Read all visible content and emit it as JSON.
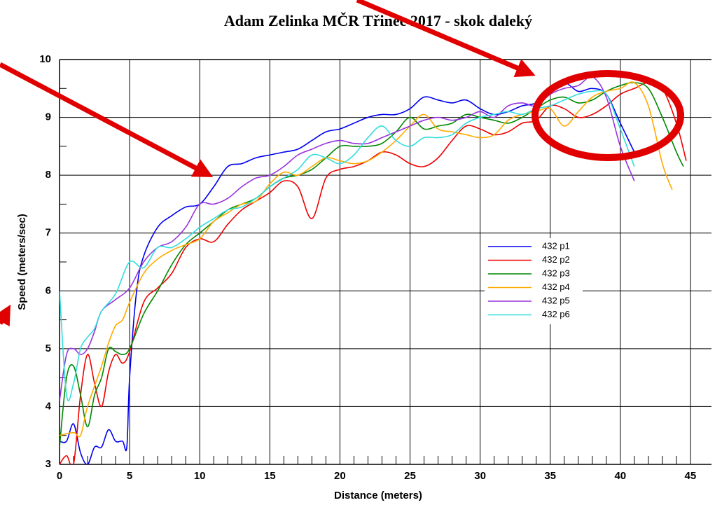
{
  "chart_data": {
    "type": "line",
    "title": "Adam Zelinka MČR Třinec 2017 - skok daleký",
    "x_label": "Distance (meters)",
    "y_label": "Speed (meters/sec)",
    "xlim": [
      0,
      46.5
    ],
    "ylim": [
      3,
      10
    ],
    "xticks": [
      0,
      5,
      10,
      15,
      20,
      25,
      30,
      35,
      40,
      45
    ],
    "yticks": [
      3,
      4,
      5,
      6,
      7,
      8,
      9,
      10
    ],
    "grid": true,
    "series": [
      {
        "name": "432 p1",
        "color": "#0000ee",
        "x": [
          0,
          0.5,
          1,
          1.5,
          2,
          2.5,
          3,
          3.5,
          4,
          4.5,
          4.8,
          5,
          5.5,
          6,
          7,
          8,
          9,
          10,
          11,
          12,
          13,
          14,
          15,
          16,
          17,
          18,
          19,
          20,
          21,
          22,
          23,
          24,
          25,
          26,
          27,
          28,
          29,
          30,
          31,
          32,
          33,
          34,
          35,
          36,
          37,
          38,
          39,
          40,
          41
        ],
        "values": [
          3.4,
          3.4,
          3.7,
          3.2,
          3.0,
          3.3,
          3.3,
          3.6,
          3.4,
          3.4,
          3.3,
          4.5,
          6.0,
          6.6,
          7.1,
          7.3,
          7.45,
          7.5,
          7.8,
          8.15,
          8.2,
          8.3,
          8.35,
          8.4,
          8.45,
          8.6,
          8.75,
          8.8,
          8.9,
          9.0,
          9.05,
          9.05,
          9.15,
          9.35,
          9.3,
          9.25,
          9.3,
          9.15,
          9.05,
          9.1,
          9.2,
          9.25,
          9.45,
          9.6,
          9.45,
          9.5,
          9.4,
          8.9,
          8.4
        ]
      },
      {
        "name": "432 p2",
        "color": "#ee0000",
        "x": [
          0,
          0.5,
          1,
          1.5,
          2,
          2.5,
          3,
          3.5,
          4,
          4.5,
          5,
          6,
          7,
          8,
          9,
          10,
          11,
          12,
          13,
          14,
          15,
          16,
          17,
          18,
          19,
          20,
          21,
          22,
          23,
          24,
          25,
          26,
          27,
          28,
          29,
          30,
          31,
          32,
          33,
          34,
          35,
          36,
          37,
          38,
          39,
          40,
          41,
          42,
          43,
          44,
          44.7
        ],
        "values": [
          3.0,
          3.15,
          3.0,
          4.2,
          4.9,
          4.4,
          4.0,
          4.6,
          4.9,
          4.75,
          4.95,
          5.8,
          6.05,
          6.3,
          6.75,
          6.9,
          6.85,
          7.15,
          7.4,
          7.55,
          7.7,
          7.9,
          7.8,
          7.25,
          7.95,
          8.1,
          8.15,
          8.25,
          8.4,
          8.35,
          8.2,
          8.15,
          8.3,
          8.6,
          8.85,
          8.8,
          8.7,
          8.75,
          8.9,
          8.95,
          9.2,
          9.15,
          9.0,
          9.05,
          9.2,
          9.4,
          9.5,
          9.6,
          9.5,
          8.9,
          8.25
        ]
      },
      {
        "name": "432 p3",
        "color": "#008800",
        "x": [
          0,
          0.5,
          1,
          1.5,
          2,
          2.5,
          3,
          3.5,
          4,
          4.5,
          5,
          6,
          7,
          8,
          9,
          10,
          11,
          12,
          13,
          14,
          15,
          16,
          17,
          18,
          19,
          20,
          21,
          22,
          23,
          24,
          25,
          26,
          27,
          28,
          29,
          30,
          31,
          32,
          33,
          34,
          35,
          36,
          37,
          38,
          39,
          40,
          41,
          42,
          43,
          44,
          44.5
        ],
        "values": [
          3.3,
          4.5,
          4.7,
          4.2,
          3.65,
          4.2,
          4.5,
          5.0,
          4.95,
          4.9,
          5.0,
          5.6,
          6.0,
          6.45,
          6.8,
          7.0,
          7.2,
          7.4,
          7.5,
          7.6,
          7.8,
          7.95,
          8.0,
          8.1,
          8.3,
          8.5,
          8.5,
          8.5,
          8.55,
          8.75,
          9.0,
          8.8,
          8.85,
          8.9,
          9.05,
          9.0,
          8.95,
          8.9,
          9.0,
          9.15,
          9.3,
          9.35,
          9.25,
          9.3,
          9.45,
          9.55,
          9.6,
          9.5,
          9.0,
          8.4,
          8.15
        ]
      },
      {
        "name": "432 p4",
        "color": "#ffaa00",
        "x": [
          0,
          1,
          1.5,
          2,
          3,
          3.5,
          4,
          4.5,
          5,
          6,
          7,
          8,
          9,
          10,
          11,
          12,
          13,
          14,
          15,
          16,
          17,
          18,
          19,
          20,
          21,
          22,
          23,
          24,
          25,
          26,
          27,
          28,
          29,
          30,
          31,
          32,
          33,
          34,
          35,
          36,
          37,
          38,
          39,
          40,
          41,
          42,
          43,
          43.7
        ],
        "values": [
          3.5,
          3.55,
          3.5,
          4.0,
          4.7,
          5.1,
          5.4,
          5.5,
          5.8,
          6.3,
          6.55,
          6.7,
          6.8,
          6.9,
          7.2,
          7.35,
          7.5,
          7.55,
          7.85,
          8.05,
          8.0,
          8.15,
          8.3,
          8.25,
          8.2,
          8.25,
          8.4,
          8.6,
          8.85,
          9.05,
          8.8,
          8.75,
          8.7,
          8.65,
          8.7,
          8.95,
          9.05,
          9.1,
          9.15,
          8.85,
          9.1,
          9.35,
          9.45,
          9.5,
          9.6,
          9.2,
          8.2,
          7.75
        ]
      },
      {
        "name": "432 p5",
        "color": "#9933dd",
        "x": [
          0,
          0.5,
          1,
          1.5,
          2,
          2.5,
          3,
          4,
          5,
          6,
          7,
          8,
          9,
          10,
          11,
          12,
          13,
          14,
          15,
          16,
          17,
          18,
          19,
          20,
          21,
          22,
          23,
          24,
          25,
          26,
          27,
          28,
          29,
          30,
          31,
          32,
          33,
          34,
          35,
          36,
          37,
          38,
          39,
          40,
          41
        ],
        "values": [
          4.1,
          4.9,
          5.0,
          4.9,
          5.0,
          5.3,
          5.65,
          5.85,
          6.05,
          6.5,
          6.75,
          6.85,
          7.1,
          7.5,
          7.5,
          7.6,
          7.8,
          7.95,
          8.0,
          8.15,
          8.35,
          8.45,
          8.55,
          8.6,
          8.55,
          8.55,
          8.65,
          8.75,
          8.85,
          8.95,
          9.0,
          8.95,
          9.0,
          9.1,
          9.0,
          9.2,
          9.25,
          9.2,
          9.4,
          9.5,
          9.55,
          9.7,
          9.35,
          8.5,
          7.9
        ]
      },
      {
        "name": "432 p6",
        "color": "#33dddd",
        "x": [
          0,
          0.5,
          1,
          1.5,
          2,
          2.5,
          3,
          4,
          5,
          6,
          7,
          8,
          9,
          10,
          11,
          12,
          13,
          14,
          15,
          16,
          17,
          18,
          19,
          20,
          21,
          22,
          23,
          24,
          25,
          26,
          27,
          28,
          29,
          30,
          31,
          32,
          33,
          34,
          35,
          36,
          37,
          38,
          39,
          40,
          41
        ],
        "values": [
          6.0,
          4.2,
          4.4,
          5.0,
          5.2,
          5.35,
          5.65,
          5.95,
          6.5,
          6.4,
          6.75,
          6.75,
          6.9,
          7.1,
          7.25,
          7.4,
          7.45,
          7.6,
          7.8,
          7.95,
          8.1,
          8.35,
          8.3,
          8.2,
          8.35,
          8.65,
          8.85,
          8.6,
          8.5,
          8.65,
          8.65,
          8.7,
          8.9,
          9.0,
          9.05,
          9.1,
          9.05,
          9.15,
          9.2,
          9.3,
          9.4,
          9.45,
          9.4,
          8.8,
          8.15
        ]
      }
    ]
  }
}
